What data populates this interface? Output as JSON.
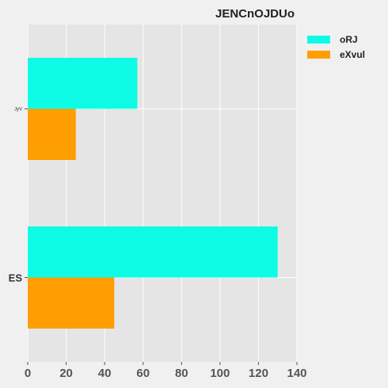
{
  "chart_data": {
    "type": "bar",
    "orientation": "horizontal",
    "title": "JENCnOJDUo",
    "categories": [
      "ES",
      "JyV"
    ],
    "series": [
      {
        "name": "oRJ",
        "color": "#0efce6",
        "values": [
          130,
          57
        ]
      },
      {
        "name": "eXvul",
        "color": "#fe9e00",
        "values": [
          45,
          25
        ]
      }
    ],
    "xlabel": "",
    "ylabel": "",
    "xlim": [
      0,
      140
    ],
    "xticks": [
      "0",
      "20",
      "40",
      "60",
      "80",
      "100",
      "120",
      "140"
    ],
    "grid": true,
    "legend": "top-right",
    "colors": {
      "background": "#f0f0f0",
      "plot_area": "#e5e5e5",
      "grid": "#ffffff"
    }
  }
}
